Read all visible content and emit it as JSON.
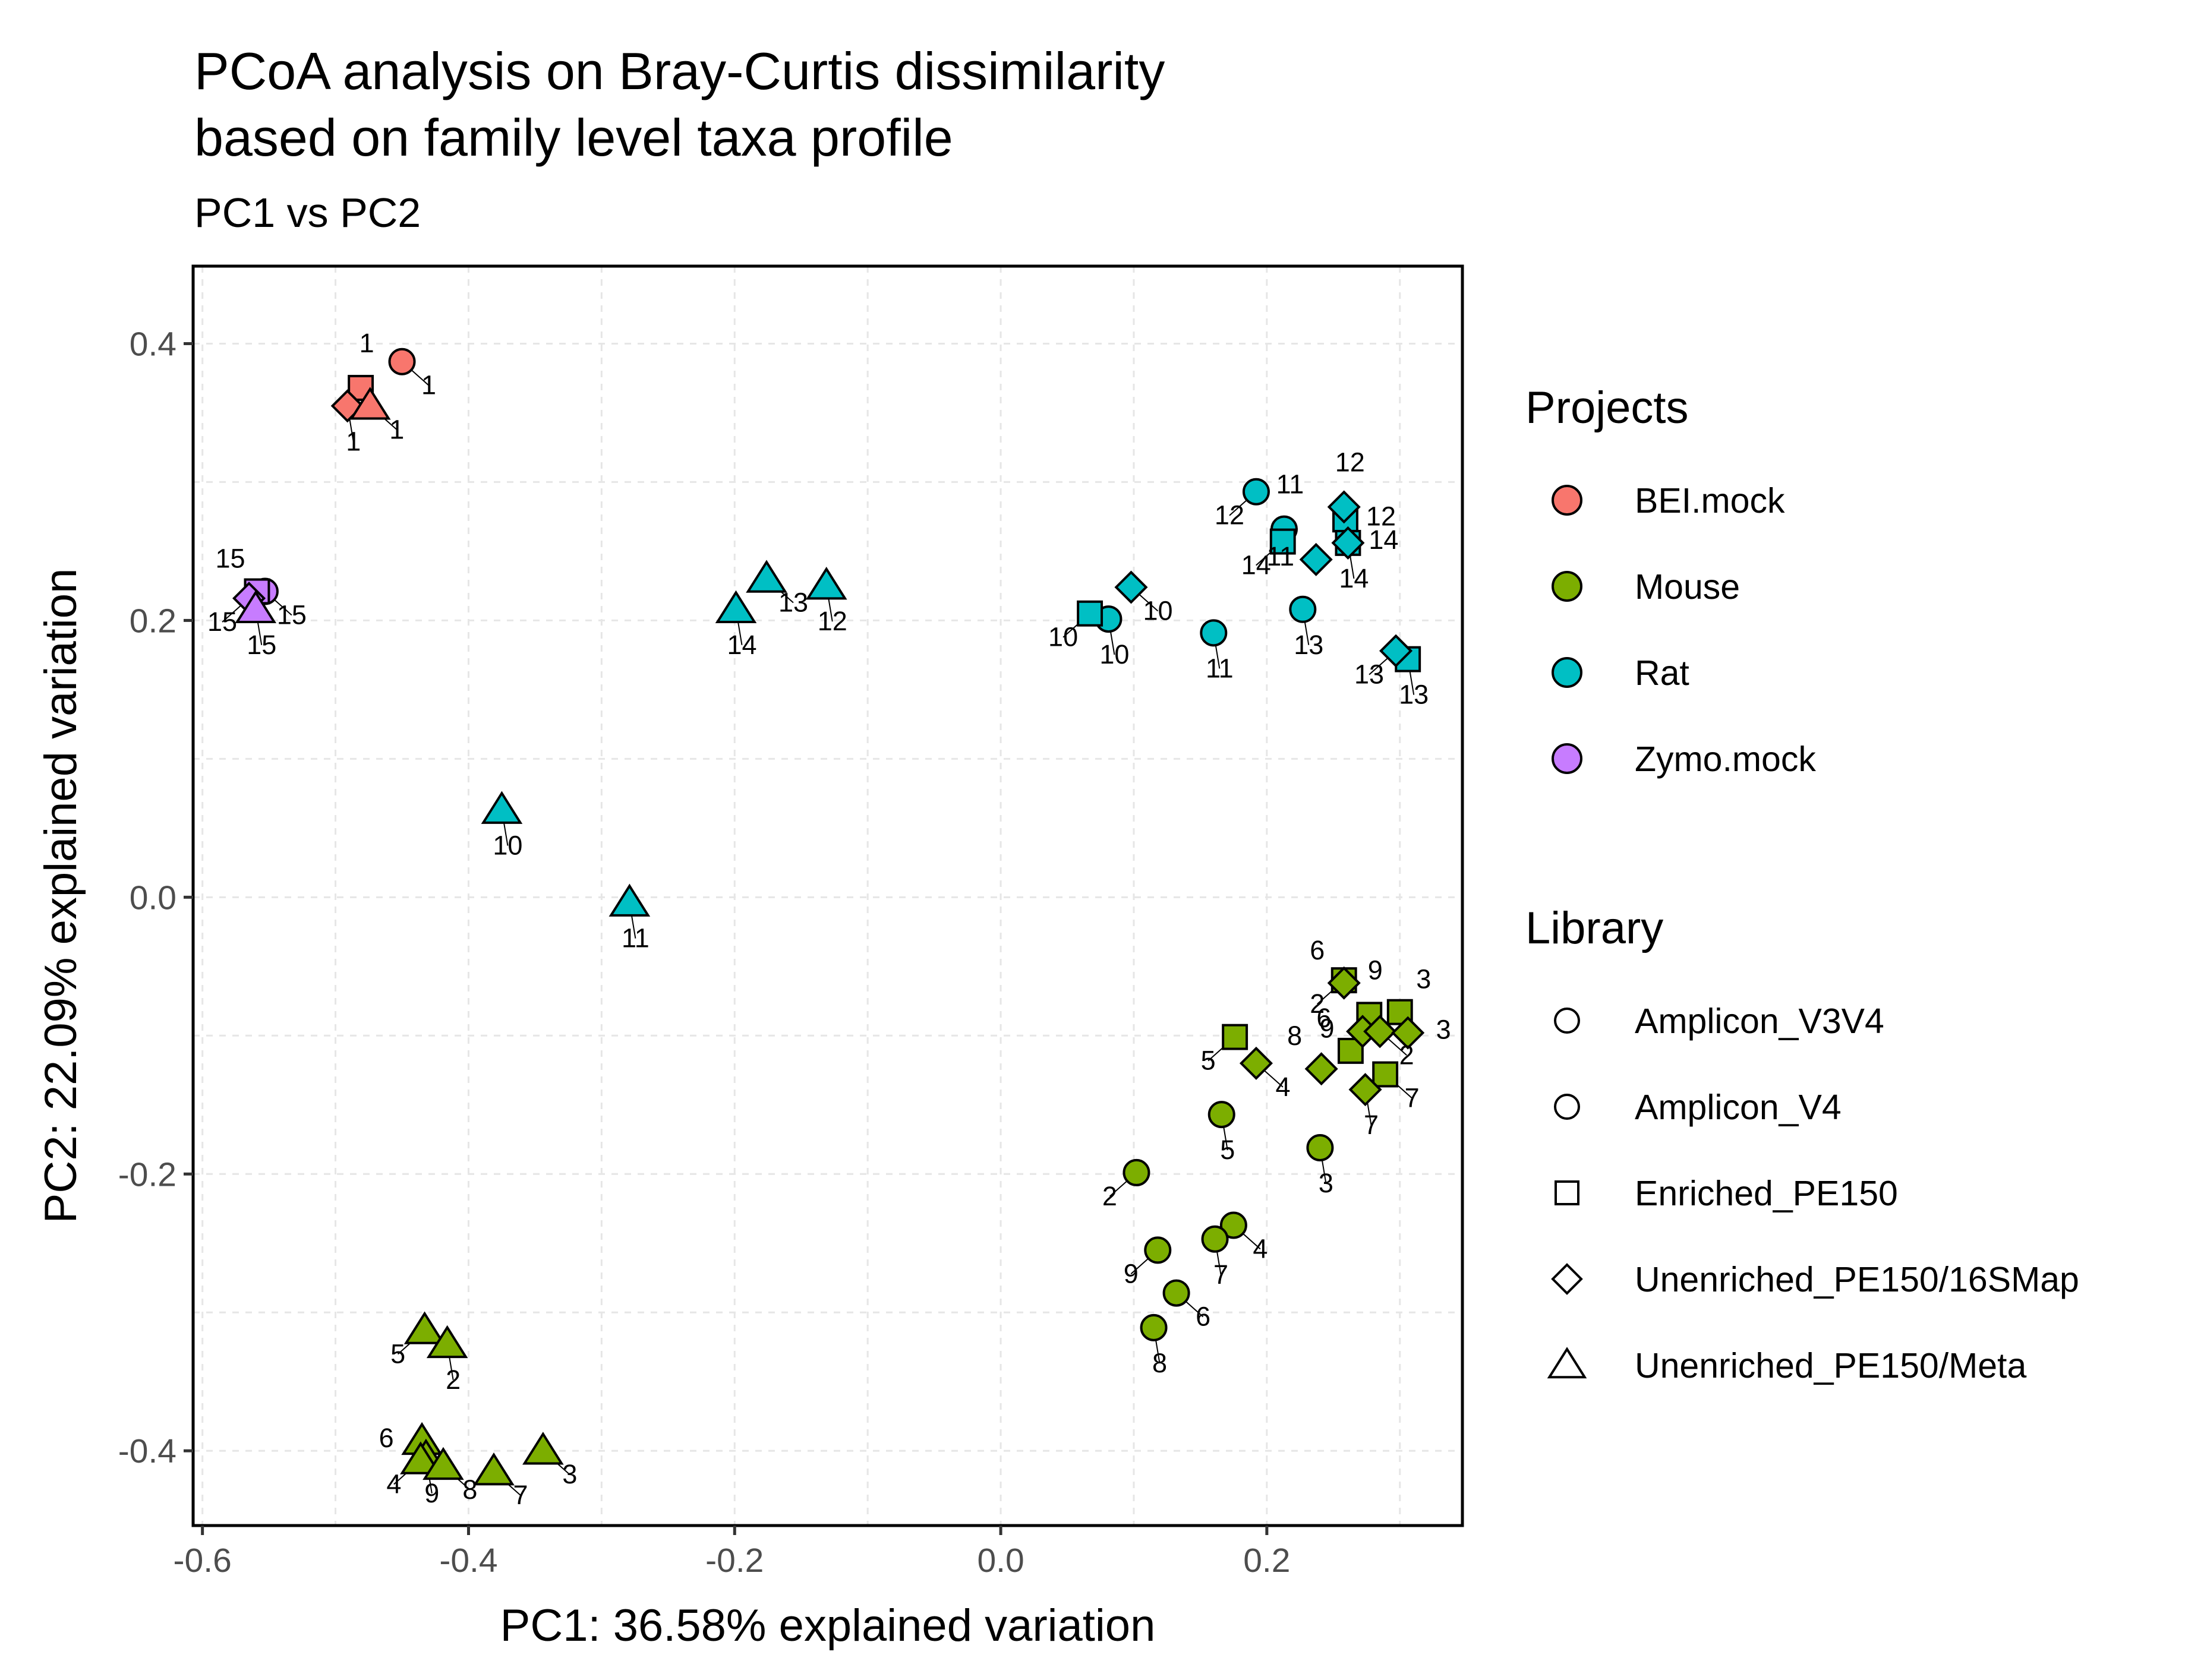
{
  "chart_data": {
    "type": "scatter",
    "title": "PCoA analysis on Bray-Curtis dissimilarity\nbased on family level taxa profile",
    "subtitle": "PC1 vs PC2",
    "xlabel": "PC1: 36.58% explained variation",
    "ylabel": "PC2: 22.09% explained variation",
    "xlim": [
      -0.607,
      0.347
    ],
    "ylim": [
      -0.454,
      0.456
    ],
    "xticks": [
      -0.6,
      -0.4,
      -0.2,
      0.0,
      0.2
    ],
    "xtick_labels": [
      "-0.6",
      "-0.4",
      "-0.2",
      "0.0",
      "0.2"
    ],
    "yticks": [
      -0.4,
      -0.2,
      0.0,
      0.2,
      0.4
    ],
    "ytick_labels": [
      "-0.4",
      "-0.2",
      "0.0",
      "0.2",
      "0.4"
    ],
    "grid": true,
    "legend_position": "right",
    "legends": [
      {
        "title": "Projects",
        "items": [
          {
            "label": "BEI.mock",
            "color": "#F8766D"
          },
          {
            "label": "Mouse",
            "color": "#7CAE00"
          },
          {
            "label": "Rat",
            "color": "#00BFC4"
          },
          {
            "label": "Zymo.mock",
            "color": "#C77CFF"
          }
        ]
      },
      {
        "title": "Library",
        "items": [
          {
            "label": "Amplicon_V3V4",
            "shape": "circle"
          },
          {
            "label": "Amplicon_V4",
            "shape": "circle"
          },
          {
            "label": "Enriched_PE150",
            "shape": "square"
          },
          {
            "label": "Unenriched_PE150/16SMap",
            "shape": "diamond"
          },
          {
            "label": "Unenriched_PE150/Meta",
            "shape": "triangle"
          }
        ]
      }
    ],
    "points": [
      {
        "x": -0.45,
        "y": 0.387,
        "project": "BEI.mock",
        "shape": "circle",
        "label": "1"
      },
      {
        "x": -0.481,
        "y": 0.368,
        "project": "BEI.mock",
        "shape": "square",
        "label": "1"
      },
      {
        "x": -0.491,
        "y": 0.355,
        "project": "BEI.mock",
        "shape": "diamond",
        "label": "1"
      },
      {
        "x": -0.474,
        "y": 0.355,
        "project": "BEI.mock",
        "shape": "triangle",
        "label": "1"
      },
      {
        "x": -0.553,
        "y": 0.221,
        "project": "Zymo.mock",
        "shape": "circle",
        "label": "15"
      },
      {
        "x": -0.559,
        "y": 0.221,
        "project": "Zymo.mock",
        "shape": "square",
        "label": "15"
      },
      {
        "x": -0.565,
        "y": 0.216,
        "project": "Zymo.mock",
        "shape": "diamond",
        "label": "15"
      },
      {
        "x": -0.56,
        "y": 0.208,
        "project": "Zymo.mock",
        "shape": "triangle",
        "label": "15"
      },
      {
        "x": -0.176,
        "y": 0.23,
        "project": "Rat",
        "shape": "triangle",
        "label": "13"
      },
      {
        "x": -0.131,
        "y": 0.225,
        "project": "Rat",
        "shape": "triangle",
        "label": "12"
      },
      {
        "x": -0.199,
        "y": 0.208,
        "project": "Rat",
        "shape": "triangle",
        "label": "14"
      },
      {
        "x": -0.375,
        "y": 0.063,
        "project": "Rat",
        "shape": "triangle",
        "label": "10"
      },
      {
        "x": -0.279,
        "y": -0.004,
        "project": "Rat",
        "shape": "triangle",
        "label": "11"
      },
      {
        "x": 0.192,
        "y": 0.293,
        "project": "Rat",
        "shape": "circle",
        "label": "12"
      },
      {
        "x": 0.213,
        "y": 0.266,
        "project": "Rat",
        "shape": "circle",
        "label": "11"
      },
      {
        "x": 0.227,
        "y": 0.208,
        "project": "Rat",
        "shape": "circle",
        "label": "13"
      },
      {
        "x": 0.16,
        "y": 0.191,
        "project": "Rat",
        "shape": "circle",
        "label": "11"
      },
      {
        "x": 0.081,
        "y": 0.201,
        "project": "Rat",
        "shape": "circle",
        "label": "10"
      },
      {
        "x": 0.067,
        "y": 0.205,
        "project": "Rat",
        "shape": "square",
        "label": "10"
      },
      {
        "x": 0.212,
        "y": 0.257,
        "project": "Rat",
        "shape": "square",
        "label": "14"
      },
      {
        "x": 0.259,
        "y": 0.273,
        "project": "Rat",
        "shape": "square",
        "label": "12"
      },
      {
        "x": 0.261,
        "y": 0.256,
        "project": "Rat",
        "shape": "square",
        "label": "14"
      },
      {
        "x": 0.306,
        "y": 0.172,
        "project": "Rat",
        "shape": "square",
        "label": "13"
      },
      {
        "x": 0.098,
        "y": 0.224,
        "project": "Rat",
        "shape": "diamond",
        "label": "10"
      },
      {
        "x": 0.258,
        "y": 0.282,
        "project": "Rat",
        "shape": "diamond",
        "label": "12"
      },
      {
        "x": 0.261,
        "y": 0.256,
        "project": "Rat",
        "shape": "diamond",
        "label": "14"
      },
      {
        "x": 0.237,
        "y": 0.244,
        "project": "Rat",
        "shape": "diamond",
        "label": "11"
      },
      {
        "x": 0.297,
        "y": 0.178,
        "project": "Rat",
        "shape": "diamond",
        "label": "13"
      },
      {
        "x": -0.433,
        "y": -0.313,
        "project": "Mouse",
        "shape": "triangle",
        "label": "5"
      },
      {
        "x": -0.416,
        "y": -0.323,
        "project": "Mouse",
        "shape": "triangle",
        "label": "2"
      },
      {
        "x": -0.435,
        "y": -0.393,
        "project": "Mouse",
        "shape": "triangle",
        "label": "6"
      },
      {
        "x": -0.432,
        "y": -0.405,
        "project": "Mouse",
        "shape": "triangle",
        "label": "9"
      },
      {
        "x": -0.436,
        "y": -0.407,
        "project": "Mouse",
        "shape": "triangle",
        "label": "4"
      },
      {
        "x": -0.419,
        "y": -0.411,
        "project": "Mouse",
        "shape": "triangle",
        "label": "8"
      },
      {
        "x": -0.381,
        "y": -0.415,
        "project": "Mouse",
        "shape": "triangle",
        "label": "7"
      },
      {
        "x": -0.344,
        "y": -0.4,
        "project": "Mouse",
        "shape": "triangle",
        "label": "3"
      },
      {
        "x": 0.166,
        "y": -0.157,
        "project": "Mouse",
        "shape": "circle",
        "label": "5"
      },
      {
        "x": 0.102,
        "y": -0.199,
        "project": "Mouse",
        "shape": "circle",
        "label": "2"
      },
      {
        "x": 0.24,
        "y": -0.181,
        "project": "Mouse",
        "shape": "circle",
        "label": "3"
      },
      {
        "x": 0.175,
        "y": -0.237,
        "project": "Mouse",
        "shape": "circle",
        "label": "4"
      },
      {
        "x": 0.161,
        "y": -0.247,
        "project": "Mouse",
        "shape": "circle",
        "label": "7"
      },
      {
        "x": 0.118,
        "y": -0.255,
        "project": "Mouse",
        "shape": "circle",
        "label": "9"
      },
      {
        "x": 0.132,
        "y": -0.286,
        "project": "Mouse",
        "shape": "circle",
        "label": "6"
      },
      {
        "x": 0.115,
        "y": -0.311,
        "project": "Mouse",
        "shape": "circle",
        "label": "8"
      },
      {
        "x": 0.176,
        "y": -0.101,
        "project": "Mouse",
        "shape": "square",
        "label": "5"
      },
      {
        "x": 0.258,
        "y": -0.06,
        "project": "Mouse",
        "shape": "square",
        "label": "2"
      },
      {
        "x": 0.277,
        "y": -0.085,
        "project": "Mouse",
        "shape": "square",
        "label": "9"
      },
      {
        "x": 0.3,
        "y": -0.083,
        "project": "Mouse",
        "shape": "square",
        "label": "3"
      },
      {
        "x": 0.263,
        "y": -0.111,
        "project": "Mouse",
        "shape": "square",
        "label": "6"
      },
      {
        "x": 0.289,
        "y": -0.128,
        "project": "Mouse",
        "shape": "square",
        "label": "7"
      },
      {
        "x": 0.192,
        "y": -0.12,
        "project": "Mouse",
        "shape": "diamond",
        "label": "4"
      },
      {
        "x": 0.258,
        "y": -0.062,
        "project": "Mouse",
        "shape": "diamond",
        "label": "6"
      },
      {
        "x": 0.241,
        "y": -0.124,
        "project": "Mouse",
        "shape": "diamond",
        "label": "8"
      },
      {
        "x": 0.272,
        "y": -0.097,
        "project": "Mouse",
        "shape": "diamond",
        "label": "9"
      },
      {
        "x": 0.285,
        "y": -0.097,
        "project": "Mouse",
        "shape": "diamond",
        "label": "2"
      },
      {
        "x": 0.306,
        "y": -0.098,
        "project": "Mouse",
        "shape": "diamond",
        "label": "3"
      },
      {
        "x": 0.274,
        "y": -0.139,
        "project": "Mouse",
        "shape": "diamond",
        "label": "7"
      }
    ]
  }
}
